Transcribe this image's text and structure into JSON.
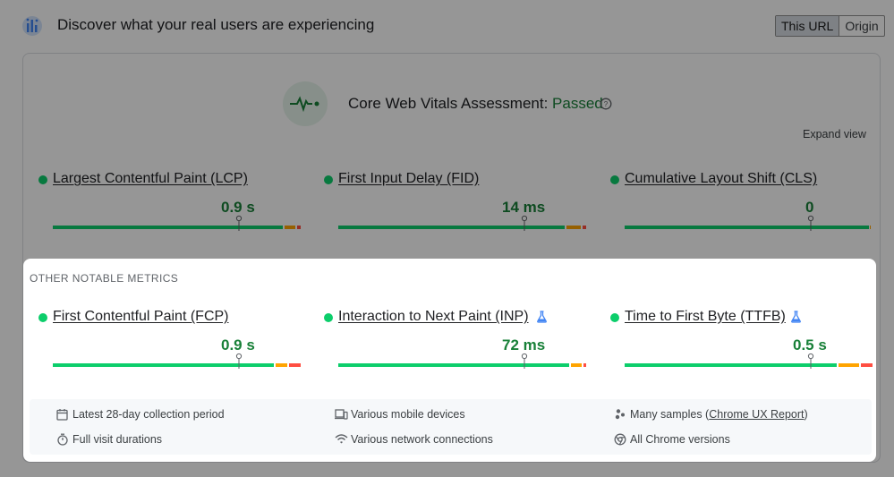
{
  "header": {
    "title": "Discover what your real users are experiencing",
    "tabs": [
      "This URL",
      "Origin"
    ],
    "active_tab": "This URL"
  },
  "assessment": {
    "label": "Core Web Vitals Assessment:",
    "status": "Passed",
    "expand_label": "Expand view"
  },
  "core_metrics": [
    {
      "name": "Largest Contentful Paint (LCP)",
      "value": "0.9 s"
    },
    {
      "name": "First Input Delay (FID)",
      "value": "14 ms"
    },
    {
      "name": "Cumulative Layout Shift (CLS)",
      "value": "0"
    }
  ],
  "other": {
    "title": "OTHER NOTABLE METRICS",
    "metrics": [
      {
        "name": "First Contentful Paint (FCP)",
        "value": "0.9 s"
      },
      {
        "name": "Interaction to Next Paint (INP)",
        "value": "72 ms"
      },
      {
        "name": "Time to First Byte (TTFB)",
        "value": "0.5 s"
      }
    ]
  },
  "footer": {
    "period": "Latest 28-day collection period",
    "devices": "Various mobile devices",
    "samples_prefix": "Many samples (",
    "samples_link": "Chrome UX Report",
    "samples_suffix": ")",
    "durations": "Full visit durations",
    "connections": "Various network connections",
    "versions": "All Chrome versions"
  },
  "colors": {
    "good": "#0cce6b",
    "needs_improvement": "#ffa400",
    "poor": "#ff4e42",
    "passed_text": "#188038"
  }
}
